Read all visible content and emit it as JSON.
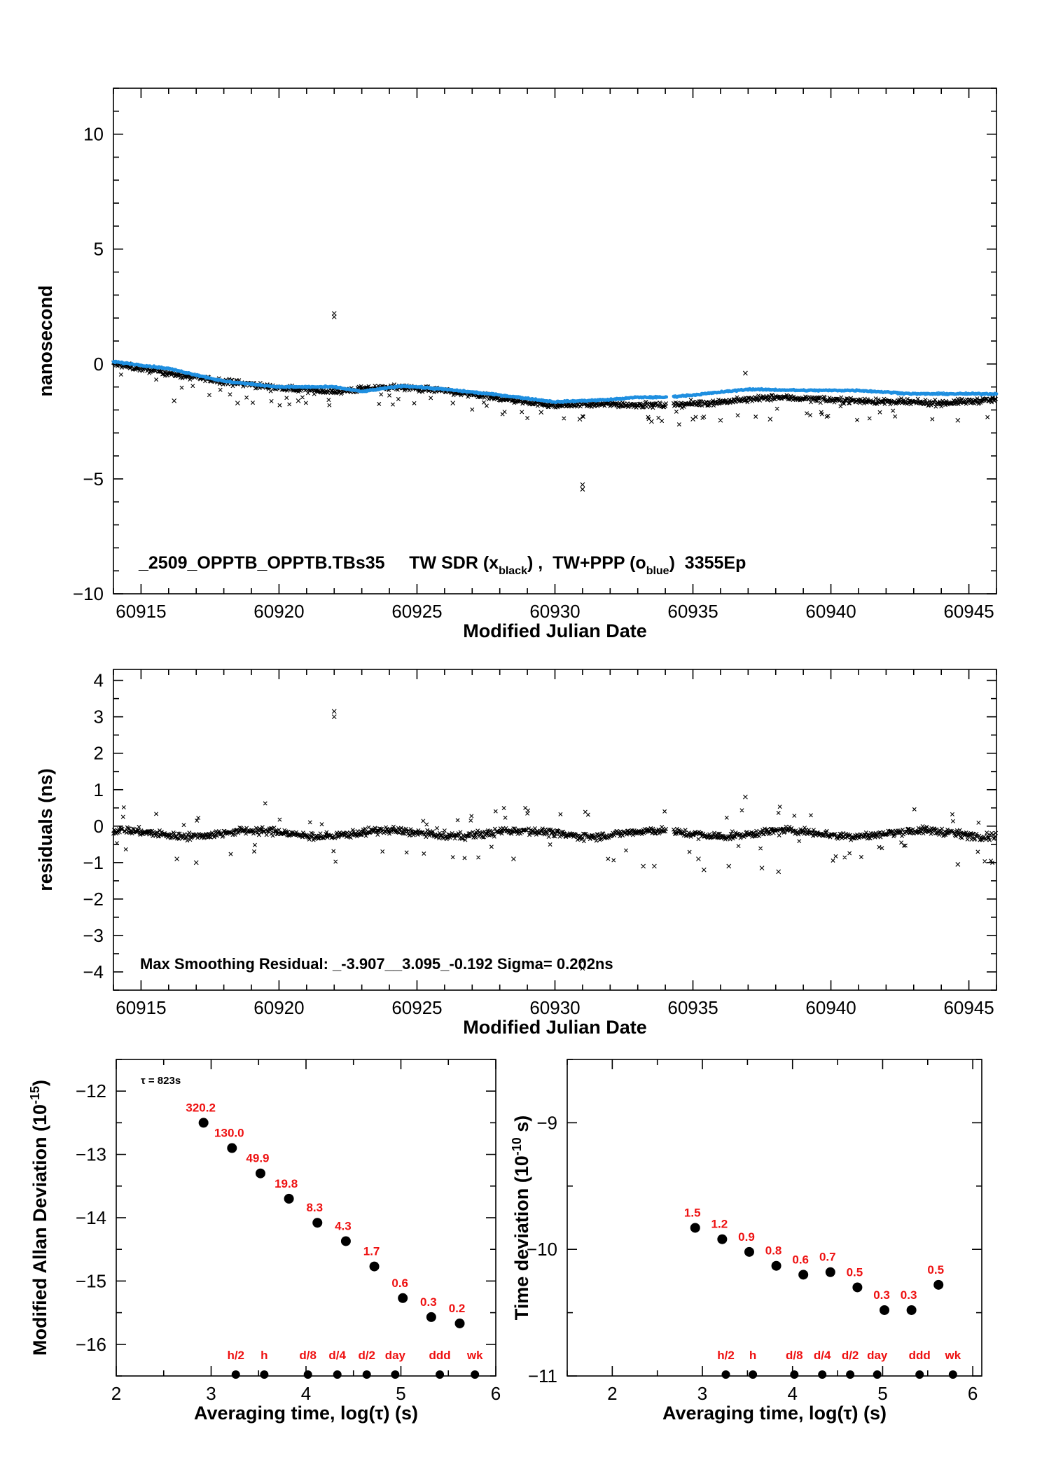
{
  "chart_data": [
    {
      "id": "phase",
      "type": "scatter",
      "xlabel": "Modified Julian Date",
      "ylabel": "nanosecond",
      "xlim": [
        60914,
        60946
      ],
      "ylim": [
        -10,
        12
      ],
      "xticks": [
        60915,
        60920,
        60925,
        60930,
        60935,
        60940,
        60945
      ],
      "yticks": [
        -10,
        -5,
        0,
        5,
        10
      ],
      "ytick_labels": [
        "−10",
        "−5",
        "0",
        "5",
        "10"
      ],
      "annotation": {
        "prefix": "_2509_OPPTB_OPPTB.TBs35     TW SDR (x",
        "sub1": "black",
        "mid": ") ,  TW+PPP (o",
        "sub2": "blue",
        "suffix": ")  3355Ep"
      },
      "series": [
        {
          "marker": "x",
          "color": "#000000",
          "trend": [
            [
              60914.0,
              0.0
            ],
            [
              60917.0,
              -0.6
            ],
            [
              60920.0,
              -1.05
            ],
            [
              60922.0,
              -1.2
            ],
            [
              60924.0,
              -1.0
            ],
            [
              60925.5,
              -1.1
            ],
            [
              60928.0,
              -1.5
            ],
            [
              60930.0,
              -1.8
            ],
            [
              60932.0,
              -1.75
            ],
            [
              60934.0,
              -1.8
            ],
            [
              60936.0,
              -1.65
            ],
            [
              60938.0,
              -1.45
            ],
            [
              60940.0,
              -1.55
            ],
            [
              60942.0,
              -1.65
            ],
            [
              60944.0,
              -1.7
            ],
            [
              60946.0,
              -1.55
            ]
          ],
          "gaps": [
            [
              60934.05,
              60934.3
            ]
          ],
          "outliers": [
            [
              60922.0,
              2.05
            ],
            [
              60922.0,
              2.2
            ],
            [
              60931.0,
              -5.25
            ],
            [
              60931.0,
              -5.45
            ],
            [
              60936.9,
              -0.4
            ],
            [
              60916.2,
              -1.6
            ],
            [
              60918.5,
              -1.7
            ],
            [
              60920.7,
              -1.6
            ],
            [
              60926.3,
              -1.7
            ],
            [
              60929.5,
              -2.1
            ],
            [
              60930.9,
              -2.4
            ],
            [
              60933.5,
              -2.5
            ],
            [
              60935.0,
              -2.4
            ],
            [
              60936.0,
              -2.45
            ],
            [
              60937.8,
              -2.4
            ],
            [
              60944.6,
              -2.45
            ]
          ]
        },
        {
          "marker": "o",
          "color": "#1f8fe0",
          "trend": [
            [
              60914.0,
              0.1
            ],
            [
              60916.0,
              -0.2
            ],
            [
              60918.0,
              -0.75
            ],
            [
              60920.0,
              -1.0
            ],
            [
              60922.0,
              -1.0
            ],
            [
              60923.0,
              -1.2
            ],
            [
              60924.5,
              -0.95
            ],
            [
              60926.0,
              -1.1
            ],
            [
              60928.0,
              -1.35
            ],
            [
              60930.0,
              -1.65
            ],
            [
              60932.0,
              -1.55
            ],
            [
              60933.0,
              -1.45
            ],
            [
              60934.0,
              -1.45
            ],
            [
              60935.0,
              -1.35
            ],
            [
              60937.0,
              -1.1
            ],
            [
              60939.0,
              -1.15
            ],
            [
              60941.0,
              -1.15
            ],
            [
              60943.0,
              -1.3
            ],
            [
              60946.0,
              -1.3
            ]
          ],
          "gaps": [
            [
              60934.05,
              60934.3
            ]
          ]
        }
      ]
    },
    {
      "id": "residuals",
      "type": "scatter",
      "xlabel": "Modified Julian Date",
      "ylabel": "residuals (ns)",
      "xlim": [
        60914,
        60946
      ],
      "ylim": [
        -4.5,
        4.3
      ],
      "xticks": [
        60915,
        60920,
        60925,
        60930,
        60935,
        60940,
        60945
      ],
      "yticks": [
        -4,
        -3,
        -2,
        -1,
        0,
        1,
        2,
        3,
        4
      ],
      "ytick_labels": [
        "−4",
        "−3",
        "−2",
        "−1",
        "0",
        "1",
        "2",
        "3",
        "4"
      ],
      "annotation": "Max Smoothing Residual: _-3.907__3.095_-0.192  Sigma= 0.202ns",
      "series": [
        {
          "marker": "x",
          "color": "#000000",
          "level": -0.2,
          "gaps": [
            [
              60934.05,
              60934.3
            ]
          ],
          "outliers": [
            [
              60922.0,
              3.0
            ],
            [
              60922.0,
              3.15
            ],
            [
              60931.0,
              -3.7
            ],
            [
              60931.0,
              -3.9
            ],
            [
              60936.9,
              0.8
            ],
            [
              60916.3,
              -0.9
            ],
            [
              60917.0,
              -1.0
            ],
            [
              60928.5,
              -0.9
            ],
            [
              60933.2,
              -1.1
            ],
            [
              60933.6,
              -1.1
            ],
            [
              60935.2,
              -0.9
            ],
            [
              60935.4,
              -1.2
            ],
            [
              60936.3,
              -1.1
            ],
            [
              60937.5,
              -1.15
            ],
            [
              60938.1,
              -1.25
            ],
            [
              60944.6,
              -1.05
            ]
          ]
        }
      ]
    },
    {
      "id": "mdev",
      "type": "scatter",
      "xlabel": "Averaging time, log(τ) (s)",
      "ylabel": "Modified Allan Deviation (10",
      "ylabel_sup": "-15",
      "ylabel_end": ")",
      "xlim": [
        2,
        6
      ],
      "ylim": [
        -16.5,
        -11.5
      ],
      "xticks": [
        2,
        3,
        4,
        5,
        6
      ],
      "yticks": [
        -16,
        -15,
        -14,
        -13,
        -12
      ],
      "ytick_labels": [
        "−16",
        "−15",
        "−14",
        "−13",
        "−12"
      ],
      "tau_note": "τ = 823s",
      "points": [
        {
          "x": 2.92,
          "y": -12.5,
          "label": "320.2"
        },
        {
          "x": 3.22,
          "y": -12.9,
          "label": "130.0"
        },
        {
          "x": 3.52,
          "y": -13.3,
          "label": "49.9"
        },
        {
          "x": 3.82,
          "y": -13.7,
          "label": "19.8"
        },
        {
          "x": 4.12,
          "y": -14.08,
          "label": "8.3"
        },
        {
          "x": 4.42,
          "y": -14.37,
          "label": "4.3"
        },
        {
          "x": 4.72,
          "y": -14.77,
          "label": "1.7"
        },
        {
          "x": 5.02,
          "y": -15.27,
          "label": "0.6"
        },
        {
          "x": 5.32,
          "y": -15.57,
          "label": "0.3"
        },
        {
          "x": 5.62,
          "y": -15.67,
          "label": "0.2"
        }
      ],
      "time_markers": [
        {
          "x": 3.26,
          "label": "h/2"
        },
        {
          "x": 3.56,
          "label": "h"
        },
        {
          "x": 4.02,
          "label": "d/8"
        },
        {
          "x": 4.33,
          "label": "d/4"
        },
        {
          "x": 4.64,
          "label": "d/2"
        },
        {
          "x": 4.94,
          "label": "day"
        },
        {
          "x": 5.41,
          "label": "ddd"
        },
        {
          "x": 5.78,
          "label": "wk"
        }
      ]
    },
    {
      "id": "tdev",
      "type": "scatter",
      "xlabel": "Averaging time, log(τ) (s)",
      "ylabel": "Time deviation (10",
      "ylabel_sup": "-10",
      "ylabel_end": " s)",
      "xlim": [
        1.5,
        6.1
      ],
      "ylim": [
        -11,
        -8.5
      ],
      "xticks": [
        2,
        3,
        4,
        5,
        6
      ],
      "yticks": [
        -11,
        -10,
        -9
      ],
      "ytick_labels": [
        "−11",
        "−10",
        "−9"
      ],
      "points": [
        {
          "x": 2.92,
          "y": -9.83,
          "label": "1.5"
        },
        {
          "x": 3.22,
          "y": -9.92,
          "label": "1.2"
        },
        {
          "x": 3.52,
          "y": -10.02,
          "label": "0.9"
        },
        {
          "x": 3.82,
          "y": -10.13,
          "label": "0.8"
        },
        {
          "x": 4.12,
          "y": -10.2,
          "label": "0.6"
        },
        {
          "x": 4.42,
          "y": -10.18,
          "label": "0.7"
        },
        {
          "x": 4.72,
          "y": -10.3,
          "label": "0.5"
        },
        {
          "x": 5.02,
          "y": -10.48,
          "label": "0.3"
        },
        {
          "x": 5.32,
          "y": -10.48,
          "label": "0.3"
        },
        {
          "x": 5.62,
          "y": -10.28,
          "label": "0.5"
        }
      ],
      "time_markers": [
        {
          "x": 3.26,
          "label": "h/2"
        },
        {
          "x": 3.56,
          "label": "h"
        },
        {
          "x": 4.02,
          "label": "d/8"
        },
        {
          "x": 4.33,
          "label": "d/4"
        },
        {
          "x": 4.64,
          "label": "d/2"
        },
        {
          "x": 4.94,
          "label": "day"
        },
        {
          "x": 5.41,
          "label": "ddd"
        },
        {
          "x": 5.78,
          "label": "wk"
        }
      ]
    }
  ]
}
